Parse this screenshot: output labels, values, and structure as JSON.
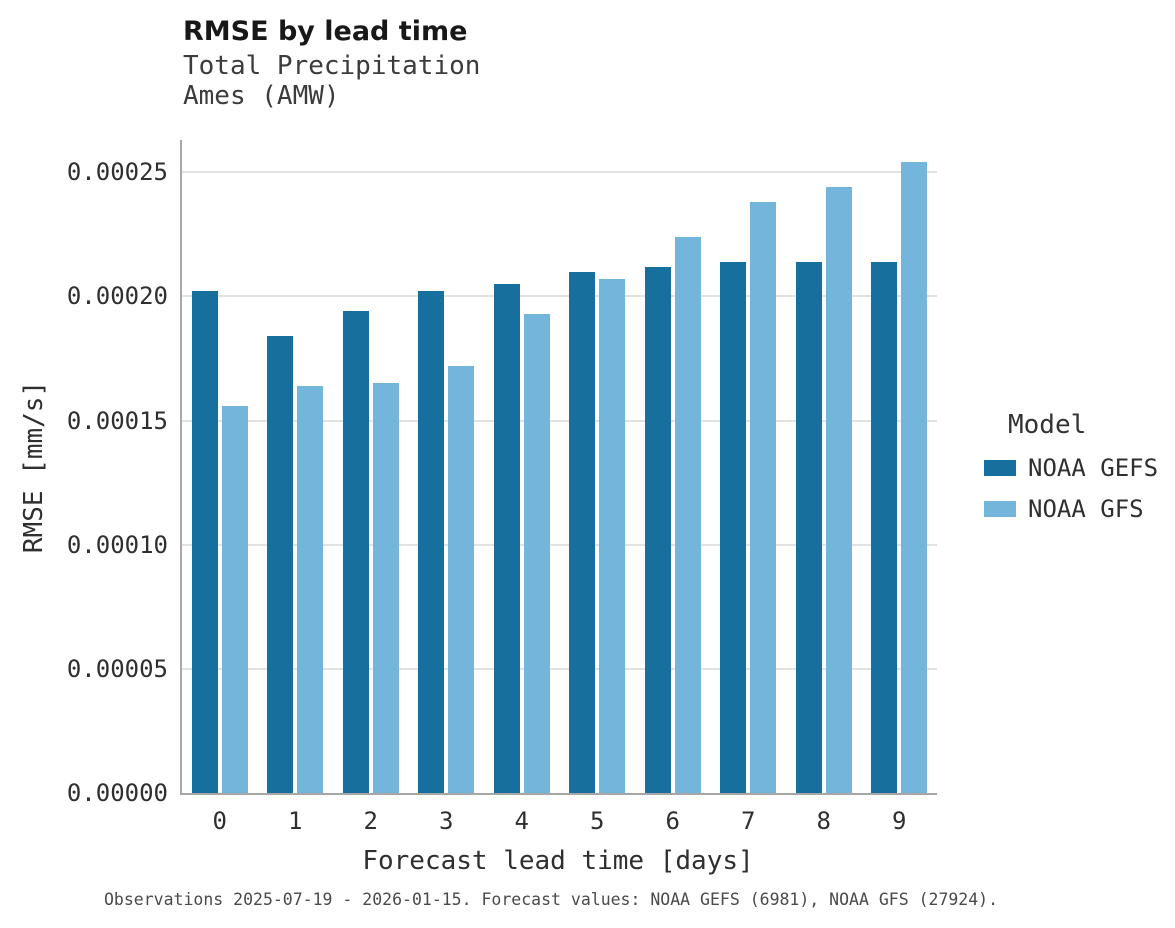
{
  "chart_data": {
    "type": "bar",
    "title": "RMSE by lead time",
    "subtitle_lines": [
      "Total Precipitation",
      "Ames (AMW)"
    ],
    "categories": [
      "0",
      "1",
      "2",
      "3",
      "4",
      "5",
      "6",
      "7",
      "8",
      "9"
    ],
    "series": [
      {
        "name": "NOAA GEFS",
        "color": "#176f9e",
        "values": [
          0.000202,
          0.000184,
          0.000194,
          0.000202,
          0.000205,
          0.00021,
          0.000212,
          0.000214,
          0.000214,
          0.000214
        ]
      },
      {
        "name": "NOAA GFS",
        "color": "#74b5dc",
        "values": [
          0.000156,
          0.000164,
          0.000165,
          0.000172,
          0.000193,
          0.000207,
          0.000224,
          0.000238,
          0.000244,
          0.000254
        ]
      }
    ],
    "xlabel": "Forecast lead time [days]",
    "ylabel": "RMSE [mm/s]",
    "ylim": [
      0,
      0.000263
    ],
    "yticks": [
      0,
      5e-05,
      0.0001,
      0.00015,
      0.0002,
      0.00025
    ],
    "ytick_labels": [
      "0.00000",
      "0.00005",
      "0.00010",
      "0.00015",
      "0.00020",
      "0.00025"
    ],
    "grid": true,
    "legend_title": "Model",
    "legend_position": "right",
    "caption": "Observations 2025-07-19 - 2026-01-15. Forecast values: NOAA GEFS (6981), NOAA GFS (27924)."
  }
}
